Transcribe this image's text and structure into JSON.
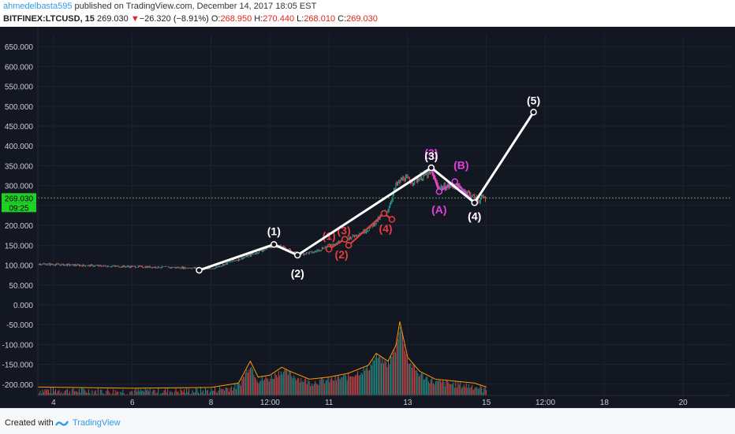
{
  "header": {
    "username": "ahmedelbasta595",
    "published_text": "published on TradingView.com, December 14, 2017 18:05 EST",
    "symbol": "BITFINEX:LTCUSD, 15",
    "last": "269.030",
    "change_arrow": "▼",
    "change": "−26.320 (−8.91%)",
    "o_label": "O:",
    "o_value": "268.950",
    "h_label": "H:",
    "h_value": "270.440",
    "l_label": "L:",
    "l_value": "268.010",
    "c_label": "C:",
    "c_value": "269.030"
  },
  "footer": {
    "created_with": "Created with",
    "brand": "TradingView"
  },
  "chart_data": {
    "type": "line",
    "title": "",
    "y_ticks": [
      "650.000",
      "600.000",
      "550.000",
      "500.000",
      "450.000",
      "400.000",
      "350.000",
      "300.000",
      "250.000",
      "200.000",
      "150.000",
      "100.000",
      "50.000",
      "0.000",
      "-50.000",
      "-100.000",
      "-150.000",
      "-200.000"
    ],
    "y_tick_values": [
      650,
      600,
      550,
      500,
      450,
      400,
      350,
      300,
      250,
      200,
      150,
      100,
      50,
      0,
      -50,
      -100,
      -150,
      -200
    ],
    "ylim": [
      -228,
      680
    ],
    "x_tick_labels": [
      "4",
      "6",
      "8",
      "12:00",
      "11",
      "13",
      "15",
      "12:00",
      "18",
      "20"
    ],
    "x_tick_times": [
      4,
      6,
      8,
      9.5,
      11,
      13,
      15,
      16.5,
      18,
      20
    ],
    "xlim": [
      3.6,
      21.2
    ],
    "current_price_label": "269.030",
    "countdown_label": "09:25",
    "current_price": 269.03,
    "colors": {
      "up": "#26a69a",
      "down": "#ef5350",
      "wave": "#ffffff",
      "sub": "#e83d3d",
      "corr": "#e040e0",
      "price_line": "#4caf50",
      "label_bg": "#1fd124"
    },
    "price_series": [
      [
        3.6,
        103
      ],
      [
        4.5,
        100
      ],
      [
        5.5,
        97
      ],
      [
        6.5,
        95
      ],
      [
        7.5,
        93
      ],
      [
        8,
        90
      ],
      [
        8.5,
        108
      ],
      [
        9,
        125
      ],
      [
        9.6,
        150
      ],
      [
        9.9,
        142
      ],
      [
        10.2,
        128
      ],
      [
        10.6,
        132
      ],
      [
        11,
        150
      ],
      [
        11.5,
        168
      ],
      [
        12,
        190
      ],
      [
        12.3,
        220
      ],
      [
        12.5,
        240
      ],
      [
        12.7,
        300
      ],
      [
        12.9,
        320
      ],
      [
        13.1,
        310
      ],
      [
        13.4,
        325
      ],
      [
        13.6,
        330
      ],
      [
        13.8,
        295
      ],
      [
        14.2,
        300
      ],
      [
        14.5,
        285
      ],
      [
        14.8,
        262
      ],
      [
        14.9,
        270
      ],
      [
        15,
        269
      ]
    ],
    "volume_series": [
      [
        3.6,
        -215
      ],
      [
        6,
        -218
      ],
      [
        8,
        -216
      ],
      [
        8.7,
        -205
      ],
      [
        9,
        -150
      ],
      [
        9.2,
        -190
      ],
      [
        9.5,
        -185
      ],
      [
        9.8,
        -165
      ],
      [
        10,
        -175
      ],
      [
        10.5,
        -195
      ],
      [
        11,
        -190
      ],
      [
        11.5,
        -180
      ],
      [
        12,
        -160
      ],
      [
        12.2,
        -130
      ],
      [
        12.5,
        -150
      ],
      [
        12.7,
        -110
      ],
      [
        12.8,
        -50
      ],
      [
        13,
        -140
      ],
      [
        13.3,
        -175
      ],
      [
        13.7,
        -195
      ],
      [
        14.2,
        -200
      ],
      [
        14.7,
        -205
      ],
      [
        15,
        -215
      ]
    ],
    "wave_main": {
      "points": [
        [
          7.7,
          87
        ],
        [
          9.6,
          152
        ],
        [
          10.2,
          125
        ],
        [
          13.6,
          345
        ],
        [
          14.7,
          257
        ],
        [
          16.2,
          485
        ]
      ],
      "labels": [
        "",
        "(1)",
        "(2)",
        "(3)",
        "(4)",
        "(5)"
      ]
    },
    "wave_sub": {
      "points": [
        [
          11,
          140
        ],
        [
          11.4,
          165
        ],
        [
          11.5,
          150
        ],
        [
          12.4,
          230
        ],
        [
          12.6,
          215
        ]
      ],
      "labels": [
        "(1)",
        "(2)",
        "(3)",
        "(4)",
        ""
      ]
    },
    "wave_corr": {
      "points": [
        [
          13.6,
          345
        ],
        [
          13.8,
          285
        ],
        [
          14.2,
          310
        ],
        [
          14.7,
          257
        ]
      ],
      "labels": [
        "(3)",
        "(A)",
        "(B)",
        "(4)"
      ]
    }
  }
}
